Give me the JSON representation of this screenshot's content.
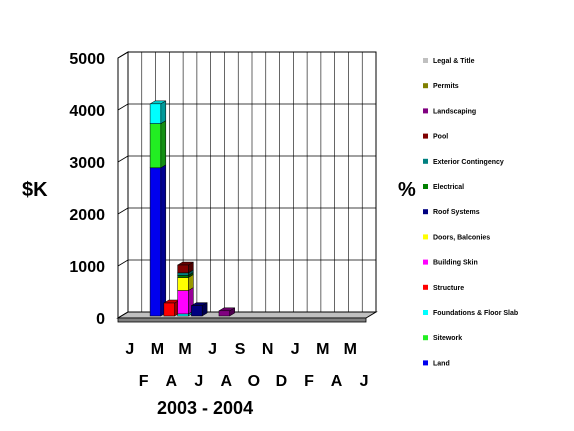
{
  "chart_data": {
    "type": "bar",
    "stacked": true,
    "three_d": true,
    "ylabel_left": "$K",
    "ylabel_right": "%",
    "caption": "2003 - 2004",
    "ylim": [
      0,
      5000
    ],
    "y_ticks": [
      "0",
      "1000",
      "2000",
      "3000",
      "4000",
      "5000"
    ],
    "categories": [
      "J",
      "F",
      "M",
      "A",
      "M",
      "J",
      "J",
      "A",
      "S",
      "O",
      "N",
      "D",
      "J",
      "F",
      "M",
      "A",
      "M",
      "J"
    ],
    "grid": true,
    "legend_position": "right",
    "series": [
      {
        "name": "Land",
        "color": "#0000ee",
        "values": [
          0,
          0,
          2850,
          0,
          0,
          0,
          0,
          0,
          0,
          0,
          0,
          0,
          0,
          0,
          0,
          0,
          0,
          0
        ]
      },
      {
        "name": "Sitework",
        "color": "#22ee22",
        "values": [
          0,
          0,
          850,
          0,
          0,
          0,
          0,
          0,
          0,
          0,
          0,
          0,
          0,
          0,
          0,
          0,
          0,
          0
        ]
      },
      {
        "name": "Foundations & Floor Slab",
        "color": "#00ffff",
        "values": [
          0,
          0,
          380,
          0,
          40,
          0,
          0,
          0,
          0,
          0,
          0,
          0,
          0,
          0,
          0,
          0,
          0,
          0
        ]
      },
      {
        "name": "Structure",
        "color": "#ff0000",
        "values": [
          0,
          0,
          0,
          250,
          0,
          0,
          0,
          0,
          0,
          0,
          0,
          0,
          0,
          0,
          0,
          0,
          0,
          0
        ]
      },
      {
        "name": "Building Skin",
        "color": "#ff00ff",
        "values": [
          0,
          0,
          0,
          0,
          450,
          0,
          0,
          0,
          0,
          0,
          0,
          0,
          0,
          0,
          0,
          0,
          0,
          0
        ]
      },
      {
        "name": "Doors, Balconies",
        "color": "#ffff00",
        "values": [
          0,
          0,
          0,
          0,
          250,
          0,
          0,
          0,
          0,
          0,
          0,
          0,
          0,
          0,
          0,
          0,
          0,
          0
        ]
      },
      {
        "name": "Roof Systems",
        "color": "#000080",
        "values": [
          0,
          0,
          0,
          0,
          0,
          200,
          0,
          0,
          0,
          0,
          0,
          0,
          0,
          0,
          0,
          0,
          0,
          0
        ]
      },
      {
        "name": "Electrical",
        "color": "#008000",
        "values": [
          0,
          0,
          0,
          0,
          40,
          0,
          0,
          0,
          0,
          0,
          0,
          0,
          0,
          0,
          0,
          0,
          0,
          0
        ]
      },
      {
        "name": "Exterior Contingency",
        "color": "#008080",
        "values": [
          0,
          0,
          0,
          0,
          50,
          0,
          0,
          0,
          0,
          0,
          0,
          0,
          0,
          0,
          0,
          0,
          0,
          0
        ]
      },
      {
        "name": "Pool",
        "color": "#800000",
        "values": [
          0,
          0,
          0,
          0,
          150,
          0,
          0,
          0,
          0,
          0,
          0,
          0,
          0,
          0,
          0,
          0,
          0,
          0
        ]
      },
      {
        "name": "Landscaping",
        "color": "#800080",
        "values": [
          0,
          0,
          0,
          0,
          0,
          0,
          0,
          100,
          0,
          0,
          0,
          0,
          0,
          0,
          0,
          0,
          0,
          0
        ]
      },
      {
        "name": "Permits",
        "color": "#808000",
        "values": [
          0,
          0,
          0,
          0,
          0,
          0,
          0,
          0,
          0,
          0,
          0,
          0,
          0,
          0,
          0,
          0,
          0,
          0
        ]
      },
      {
        "name": "Legal & Title",
        "color": "#c0c0c0",
        "values": [
          0,
          0,
          0,
          0,
          0,
          0,
          0,
          0,
          0,
          0,
          0,
          0,
          0,
          0,
          0,
          0,
          0,
          0
        ]
      }
    ],
    "legend_order": [
      "Legal & Title",
      "Permits",
      "Landscaping",
      "Pool",
      "Exterior Contingency",
      "Electrical",
      "Roof Systems",
      "Doors, Balconies",
      "Building Skin",
      "Structure",
      "Foundations & Floor Slab",
      "Sitework",
      "Land"
    ]
  }
}
